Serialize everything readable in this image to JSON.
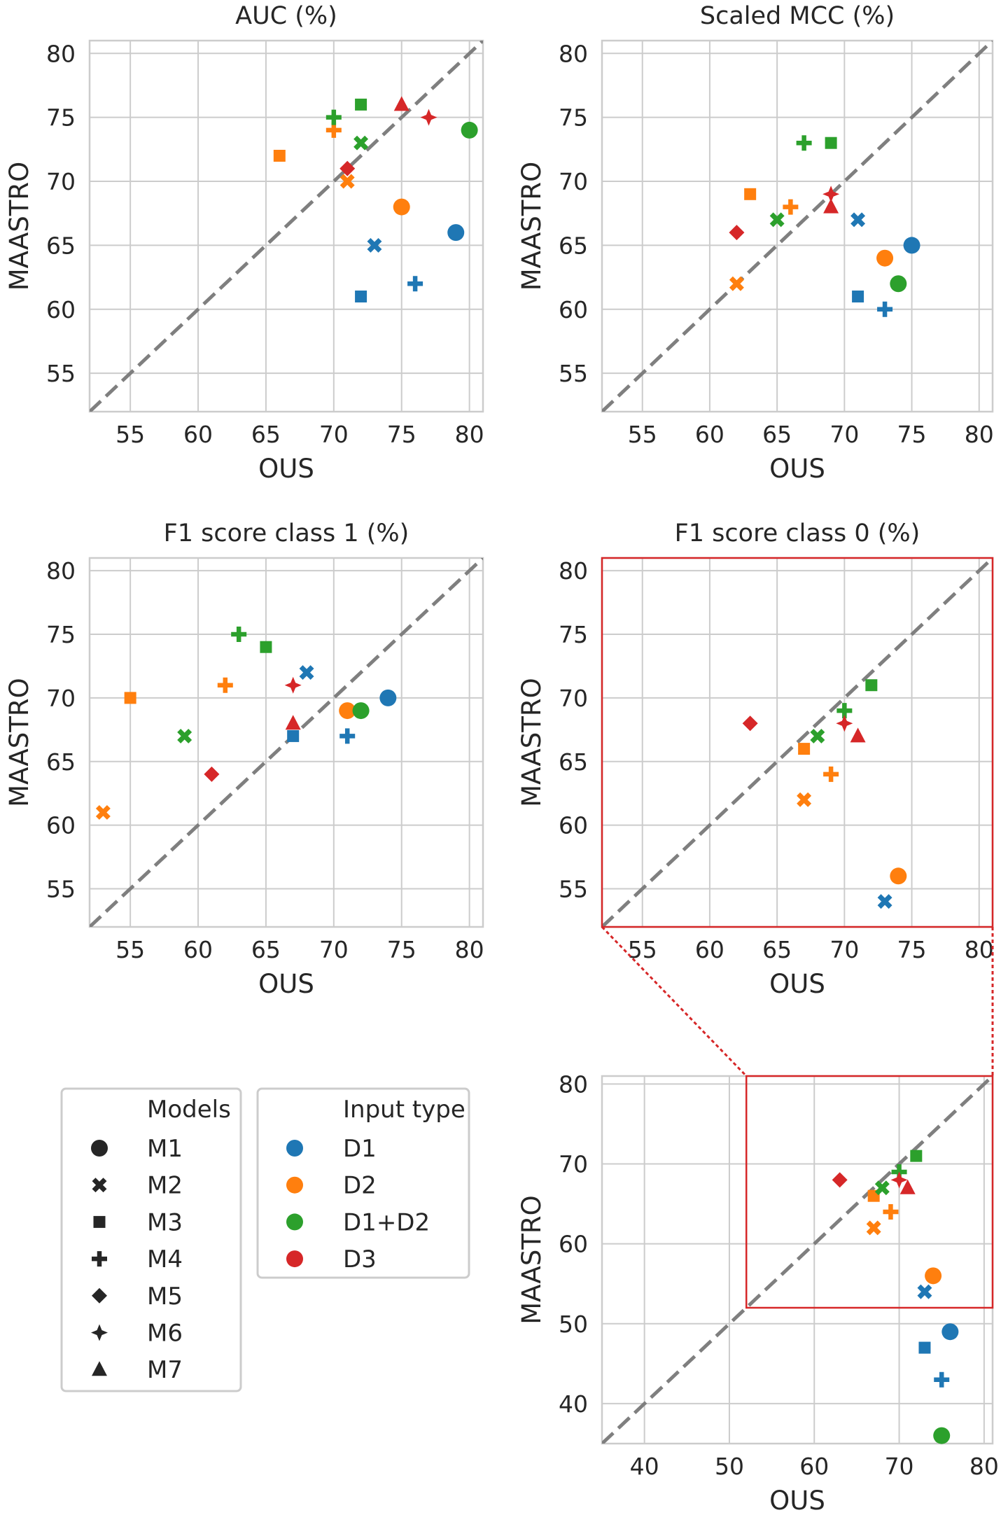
{
  "figure": {
    "x_axis_label": "OUS",
    "y_axis_label": "MAASTRO"
  },
  "colors": {
    "D1": "#1f77b4",
    "D2": "#ff7f0e",
    "D1+D2": "#2ca02c",
    "D3": "#d62728",
    "diagonal": "#7f7f7f",
    "grid": "#cccccc",
    "highlight": "#d62728"
  },
  "legend": {
    "models_title": "Models",
    "models": [
      {
        "label": "M1",
        "marker": "circle"
      },
      {
        "label": "M2",
        "marker": "x"
      },
      {
        "label": "M3",
        "marker": "square"
      },
      {
        "label": "M4",
        "marker": "plus"
      },
      {
        "label": "M5",
        "marker": "diamond"
      },
      {
        "label": "M6",
        "marker": "star4"
      },
      {
        "label": "M7",
        "marker": "triangle"
      }
    ],
    "input_title": "Input type",
    "inputs": [
      {
        "label": "D1"
      },
      {
        "label": "D2"
      },
      {
        "label": "D1+D2"
      },
      {
        "label": "D3"
      }
    ]
  },
  "chart_data": [
    {
      "type": "scatter",
      "title": "AUC (%)",
      "xlabel": "OUS",
      "ylabel": "MAASTRO",
      "xlim": [
        52,
        81
      ],
      "ylim": [
        52,
        81
      ],
      "xticks": [
        "55",
        "60",
        "65",
        "70",
        "75",
        "80"
      ],
      "yticks": [
        "55",
        "60",
        "65",
        "70",
        "75",
        "80"
      ],
      "points": [
        {
          "model": "M1",
          "input": "D1",
          "x": 79,
          "y": 66
        },
        {
          "model": "M2",
          "input": "D1",
          "x": 73,
          "y": 65
        },
        {
          "model": "M3",
          "input": "D1",
          "x": 72,
          "y": 61
        },
        {
          "model": "M4",
          "input": "D1",
          "x": 76,
          "y": 62
        },
        {
          "model": "M1",
          "input": "D2",
          "x": 75,
          "y": 68
        },
        {
          "model": "M2",
          "input": "D2",
          "x": 71,
          "y": 70
        },
        {
          "model": "M3",
          "input": "D2",
          "x": 66,
          "y": 72
        },
        {
          "model": "M4",
          "input": "D2",
          "x": 70,
          "y": 74
        },
        {
          "model": "M1",
          "input": "D1+D2",
          "x": 80,
          "y": 74
        },
        {
          "model": "M2",
          "input": "D1+D2",
          "x": 72,
          "y": 73
        },
        {
          "model": "M3",
          "input": "D1+D2",
          "x": 72,
          "y": 76
        },
        {
          "model": "M4",
          "input": "D1+D2",
          "x": 70,
          "y": 75
        },
        {
          "model": "M5",
          "input": "D3",
          "x": 71,
          "y": 71
        },
        {
          "model": "M6",
          "input": "D3",
          "x": 77,
          "y": 75
        },
        {
          "model": "M7",
          "input": "D3",
          "x": 75,
          "y": 76
        }
      ]
    },
    {
      "type": "scatter",
      "title": "Scaled MCC (%)",
      "xlabel": "OUS",
      "ylabel": "MAASTRO",
      "xlim": [
        52,
        81
      ],
      "ylim": [
        52,
        81
      ],
      "xticks": [
        "55",
        "60",
        "65",
        "70",
        "75",
        "80"
      ],
      "yticks": [
        "55",
        "60",
        "65",
        "70",
        "75",
        "80"
      ],
      "points": [
        {
          "model": "M1",
          "input": "D1",
          "x": 75,
          "y": 65
        },
        {
          "model": "M2",
          "input": "D1",
          "x": 71,
          "y": 67
        },
        {
          "model": "M3",
          "input": "D1",
          "x": 71,
          "y": 61
        },
        {
          "model": "M4",
          "input": "D1",
          "x": 73,
          "y": 60
        },
        {
          "model": "M1",
          "input": "D2",
          "x": 73,
          "y": 64
        },
        {
          "model": "M2",
          "input": "D2",
          "x": 62,
          "y": 62
        },
        {
          "model": "M3",
          "input": "D2",
          "x": 63,
          "y": 69
        },
        {
          "model": "M4",
          "input": "D2",
          "x": 66,
          "y": 68
        },
        {
          "model": "M1",
          "input": "D1+D2",
          "x": 74,
          "y": 62
        },
        {
          "model": "M2",
          "input": "D1+D2",
          "x": 65,
          "y": 67
        },
        {
          "model": "M3",
          "input": "D1+D2",
          "x": 69,
          "y": 73
        },
        {
          "model": "M4",
          "input": "D1+D2",
          "x": 67,
          "y": 73
        },
        {
          "model": "M5",
          "input": "D3",
          "x": 62,
          "y": 66
        },
        {
          "model": "M6",
          "input": "D3",
          "x": 69,
          "y": 69
        },
        {
          "model": "M7",
          "input": "D3",
          "x": 69,
          "y": 68
        }
      ]
    },
    {
      "type": "scatter",
      "title": "F1 score class 1 (%)",
      "xlabel": "OUS",
      "ylabel": "MAASTRO",
      "xlim": [
        52,
        81
      ],
      "ylim": [
        52,
        81
      ],
      "xticks": [
        "55",
        "60",
        "65",
        "70",
        "75",
        "80"
      ],
      "yticks": [
        "55",
        "60",
        "65",
        "70",
        "75",
        "80"
      ],
      "points": [
        {
          "model": "M1",
          "input": "D1",
          "x": 74,
          "y": 70
        },
        {
          "model": "M2",
          "input": "D1",
          "x": 68,
          "y": 72
        },
        {
          "model": "M3",
          "input": "D1",
          "x": 67,
          "y": 67
        },
        {
          "model": "M4",
          "input": "D1",
          "x": 71,
          "y": 67
        },
        {
          "model": "M1",
          "input": "D2",
          "x": 71,
          "y": 69
        },
        {
          "model": "M2",
          "input": "D2",
          "x": 53,
          "y": 61
        },
        {
          "model": "M3",
          "input": "D2",
          "x": 55,
          "y": 70
        },
        {
          "model": "M4",
          "input": "D2",
          "x": 62,
          "y": 71
        },
        {
          "model": "M1",
          "input": "D1+D2",
          "x": 72,
          "y": 69
        },
        {
          "model": "M2",
          "input": "D1+D2",
          "x": 59,
          "y": 67
        },
        {
          "model": "M3",
          "input": "D1+D2",
          "x": 65,
          "y": 74
        },
        {
          "model": "M4",
          "input": "D1+D2",
          "x": 63,
          "y": 75
        },
        {
          "model": "M5",
          "input": "D3",
          "x": 61,
          "y": 64
        },
        {
          "model": "M6",
          "input": "D3",
          "x": 67,
          "y": 71
        },
        {
          "model": "M7",
          "input": "D3",
          "x": 67,
          "y": 68
        }
      ]
    },
    {
      "type": "scatter",
      "title": "F1 score class 0 (%)",
      "xlabel": "OUS",
      "ylabel": "MAASTRO",
      "xlim": [
        52,
        81
      ],
      "ylim": [
        52,
        81
      ],
      "xticks": [
        "55",
        "60",
        "65",
        "70",
        "75",
        "80"
      ],
      "yticks": [
        "55",
        "60",
        "65",
        "70",
        "75",
        "80"
      ],
      "points": [
        {
          "model": "M2",
          "input": "D1",
          "x": 73,
          "y": 54
        },
        {
          "model": "M1",
          "input": "D2",
          "x": 74,
          "y": 56
        },
        {
          "model": "M2",
          "input": "D2",
          "x": 67,
          "y": 62
        },
        {
          "model": "M3",
          "input": "D2",
          "x": 67,
          "y": 66
        },
        {
          "model": "M4",
          "input": "D2",
          "x": 69,
          "y": 64
        },
        {
          "model": "M2",
          "input": "D1+D2",
          "x": 68,
          "y": 67
        },
        {
          "model": "M3",
          "input": "D1+D2",
          "x": 72,
          "y": 71
        },
        {
          "model": "M4",
          "input": "D1+D2",
          "x": 70,
          "y": 69
        },
        {
          "model": "M5",
          "input": "D3",
          "x": 63,
          "y": 68
        },
        {
          "model": "M6",
          "input": "D3",
          "x": 70,
          "y": 68
        },
        {
          "model": "M7",
          "input": "D3",
          "x": 71,
          "y": 67
        }
      ]
    },
    {
      "type": "scatter",
      "title": "",
      "xlabel": "OUS",
      "ylabel": "MAASTRO",
      "xlim": [
        35,
        81
      ],
      "ylim": [
        35,
        81
      ],
      "xticks": [
        "40",
        "50",
        "60",
        "70",
        "80"
      ],
      "yticks": [
        "40",
        "50",
        "60",
        "70",
        "80"
      ],
      "points": [
        {
          "model": "M1",
          "input": "D1",
          "x": 76,
          "y": 49
        },
        {
          "model": "M2",
          "input": "D1",
          "x": 73,
          "y": 54
        },
        {
          "model": "M3",
          "input": "D1",
          "x": 73,
          "y": 47
        },
        {
          "model": "M4",
          "input": "D1",
          "x": 75,
          "y": 43
        },
        {
          "model": "M1",
          "input": "D2",
          "x": 74,
          "y": 56
        },
        {
          "model": "M2",
          "input": "D2",
          "x": 67,
          "y": 62
        },
        {
          "model": "M3",
          "input": "D2",
          "x": 67,
          "y": 66
        },
        {
          "model": "M4",
          "input": "D2",
          "x": 69,
          "y": 64
        },
        {
          "model": "M1",
          "input": "D1+D2",
          "x": 75,
          "y": 36
        },
        {
          "model": "M2",
          "input": "D1+D2",
          "x": 68,
          "y": 67
        },
        {
          "model": "M3",
          "input": "D1+D2",
          "x": 72,
          "y": 71
        },
        {
          "model": "M4",
          "input": "D1+D2",
          "x": 70,
          "y": 69
        },
        {
          "model": "M5",
          "input": "D3",
          "x": 63,
          "y": 68
        },
        {
          "model": "M6",
          "input": "D3",
          "x": 70,
          "y": 68
        },
        {
          "model": "M7",
          "input": "D3",
          "x": 71,
          "y": 67
        }
      ]
    }
  ]
}
